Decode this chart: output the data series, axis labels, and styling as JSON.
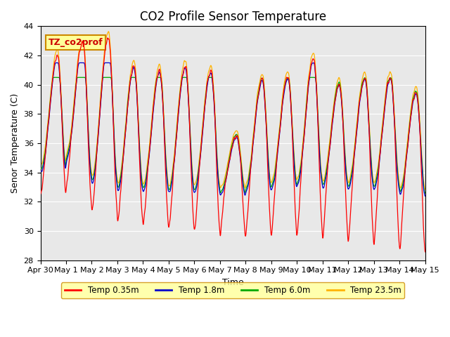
{
  "title": "CO2 Profile Sensor Temperature",
  "xlabel": "Time",
  "ylabel": "Senor Temperature (C)",
  "ylim": [
    28,
    44
  ],
  "xlim": [
    0,
    15.0
  ],
  "yticks": [
    28,
    30,
    32,
    34,
    36,
    38,
    40,
    42,
    44
  ],
  "xtick_labels": [
    "Apr 30",
    "May 1",
    "May 2",
    "May 3",
    "May 4",
    "May 5",
    "May 6",
    "May 7",
    "May 8",
    "May 9",
    "May 10",
    "May 11",
    "May 12",
    "May 13",
    "May 14",
    "May 15"
  ],
  "xtick_positions": [
    0,
    1,
    2,
    3,
    4,
    5,
    6,
    7,
    8,
    9,
    10,
    11,
    12,
    13,
    14,
    15
  ],
  "colors": {
    "temp_035": "#FF0000",
    "temp_18": "#0000CC",
    "temp_60": "#00AA00",
    "temp_235": "#FFB300"
  },
  "legend_labels": [
    "Temp 0.35m",
    "Temp 1.8m",
    "Temp 6.0m",
    "Temp 23.5m"
  ],
  "legend_box_color": "#FFFF99",
  "legend_box_edge": "#CC8800",
  "annotation_text": "TZ_co2prof",
  "annotation_color": "#CC0000",
  "annotation_bg": "#FFFF99",
  "annotation_edge": "#CC8800",
  "bg_color": "#E8E8E8",
  "title_fontsize": 12,
  "label_fontsize": 9,
  "tick_fontsize": 8,
  "figwidth": 6.4,
  "figheight": 4.8,
  "dpi": 100
}
